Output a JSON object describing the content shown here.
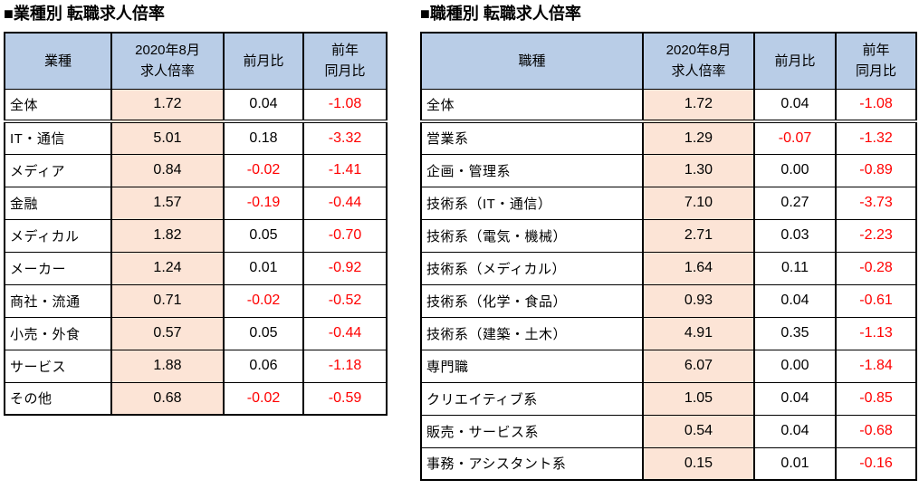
{
  "colors": {
    "header_bg": "#B9CDE7",
    "ratio_column_bg": "#FCE4D6",
    "negative_text": "#FF0000",
    "border": "#000000"
  },
  "tables": [
    {
      "title": "■業種別 転職求人倍率",
      "headers": {
        "category": "業種",
        "ratio": "2020年8月\n求人倍率",
        "mom": "前月比",
        "yoy": "前年\n同月比"
      },
      "rows": [
        {
          "label": "全体",
          "ratio": "1.72",
          "mom": "0.04",
          "yoy": "-1.08"
        },
        {
          "label": "IT・通信",
          "ratio": "5.01",
          "mom": "0.18",
          "yoy": "-3.32"
        },
        {
          "label": "メディア",
          "ratio": "0.84",
          "mom": "-0.02",
          "yoy": "-1.41"
        },
        {
          "label": "金融",
          "ratio": "1.57",
          "mom": "-0.19",
          "yoy": "-0.44"
        },
        {
          "label": "メディカル",
          "ratio": "1.82",
          "mom": "0.05",
          "yoy": "-0.70"
        },
        {
          "label": "メーカー",
          "ratio": "1.24",
          "mom": "0.01",
          "yoy": "-0.92"
        },
        {
          "label": "商社・流通",
          "ratio": "0.71",
          "mom": "-0.02",
          "yoy": "-0.52"
        },
        {
          "label": "小売・外食",
          "ratio": "0.57",
          "mom": "0.05",
          "yoy": "-0.44"
        },
        {
          "label": "サービス",
          "ratio": "1.88",
          "mom": "0.06",
          "yoy": "-1.18"
        },
        {
          "label": "その他",
          "ratio": "0.68",
          "mom": "-0.02",
          "yoy": "-0.59"
        }
      ]
    },
    {
      "title": "■職種別 転職求人倍率",
      "headers": {
        "category": "職種",
        "ratio": "2020年8月\n求人倍率",
        "mom": "前月比",
        "yoy": "前年\n同月比"
      },
      "rows": [
        {
          "label": "全体",
          "ratio": "1.72",
          "mom": "0.04",
          "yoy": "-1.08"
        },
        {
          "label": "営業系",
          "ratio": "1.29",
          "mom": "-0.07",
          "yoy": "-1.32"
        },
        {
          "label": "企画・管理系",
          "ratio": "1.30",
          "mom": "0.00",
          "yoy": "-0.89"
        },
        {
          "label": "技術系（IT・通信）",
          "ratio": "7.10",
          "mom": "0.27",
          "yoy": "-3.73"
        },
        {
          "label": "技術系（電気・機械）",
          "ratio": "2.71",
          "mom": "0.03",
          "yoy": "-2.23"
        },
        {
          "label": "技術系（メディカル）",
          "ratio": "1.64",
          "mom": "0.11",
          "yoy": "-0.28"
        },
        {
          "label": "技術系（化学・食品）",
          "ratio": "0.93",
          "mom": "0.04",
          "yoy": "-0.61"
        },
        {
          "label": "技術系（建築・土木）",
          "ratio": "4.91",
          "mom": "0.35",
          "yoy": "-1.13"
        },
        {
          "label": "専門職",
          "ratio": "6.07",
          "mom": "0.00",
          "yoy": "-1.84"
        },
        {
          "label": "クリエイティブ系",
          "ratio": "1.05",
          "mom": "0.04",
          "yoy": "-0.85"
        },
        {
          "label": "販売・サービス系",
          "ratio": "0.54",
          "mom": "0.04",
          "yoy": "-0.68"
        },
        {
          "label": "事務・アシスタント系",
          "ratio": "0.15",
          "mom": "0.01",
          "yoy": "-0.16"
        }
      ]
    }
  ]
}
